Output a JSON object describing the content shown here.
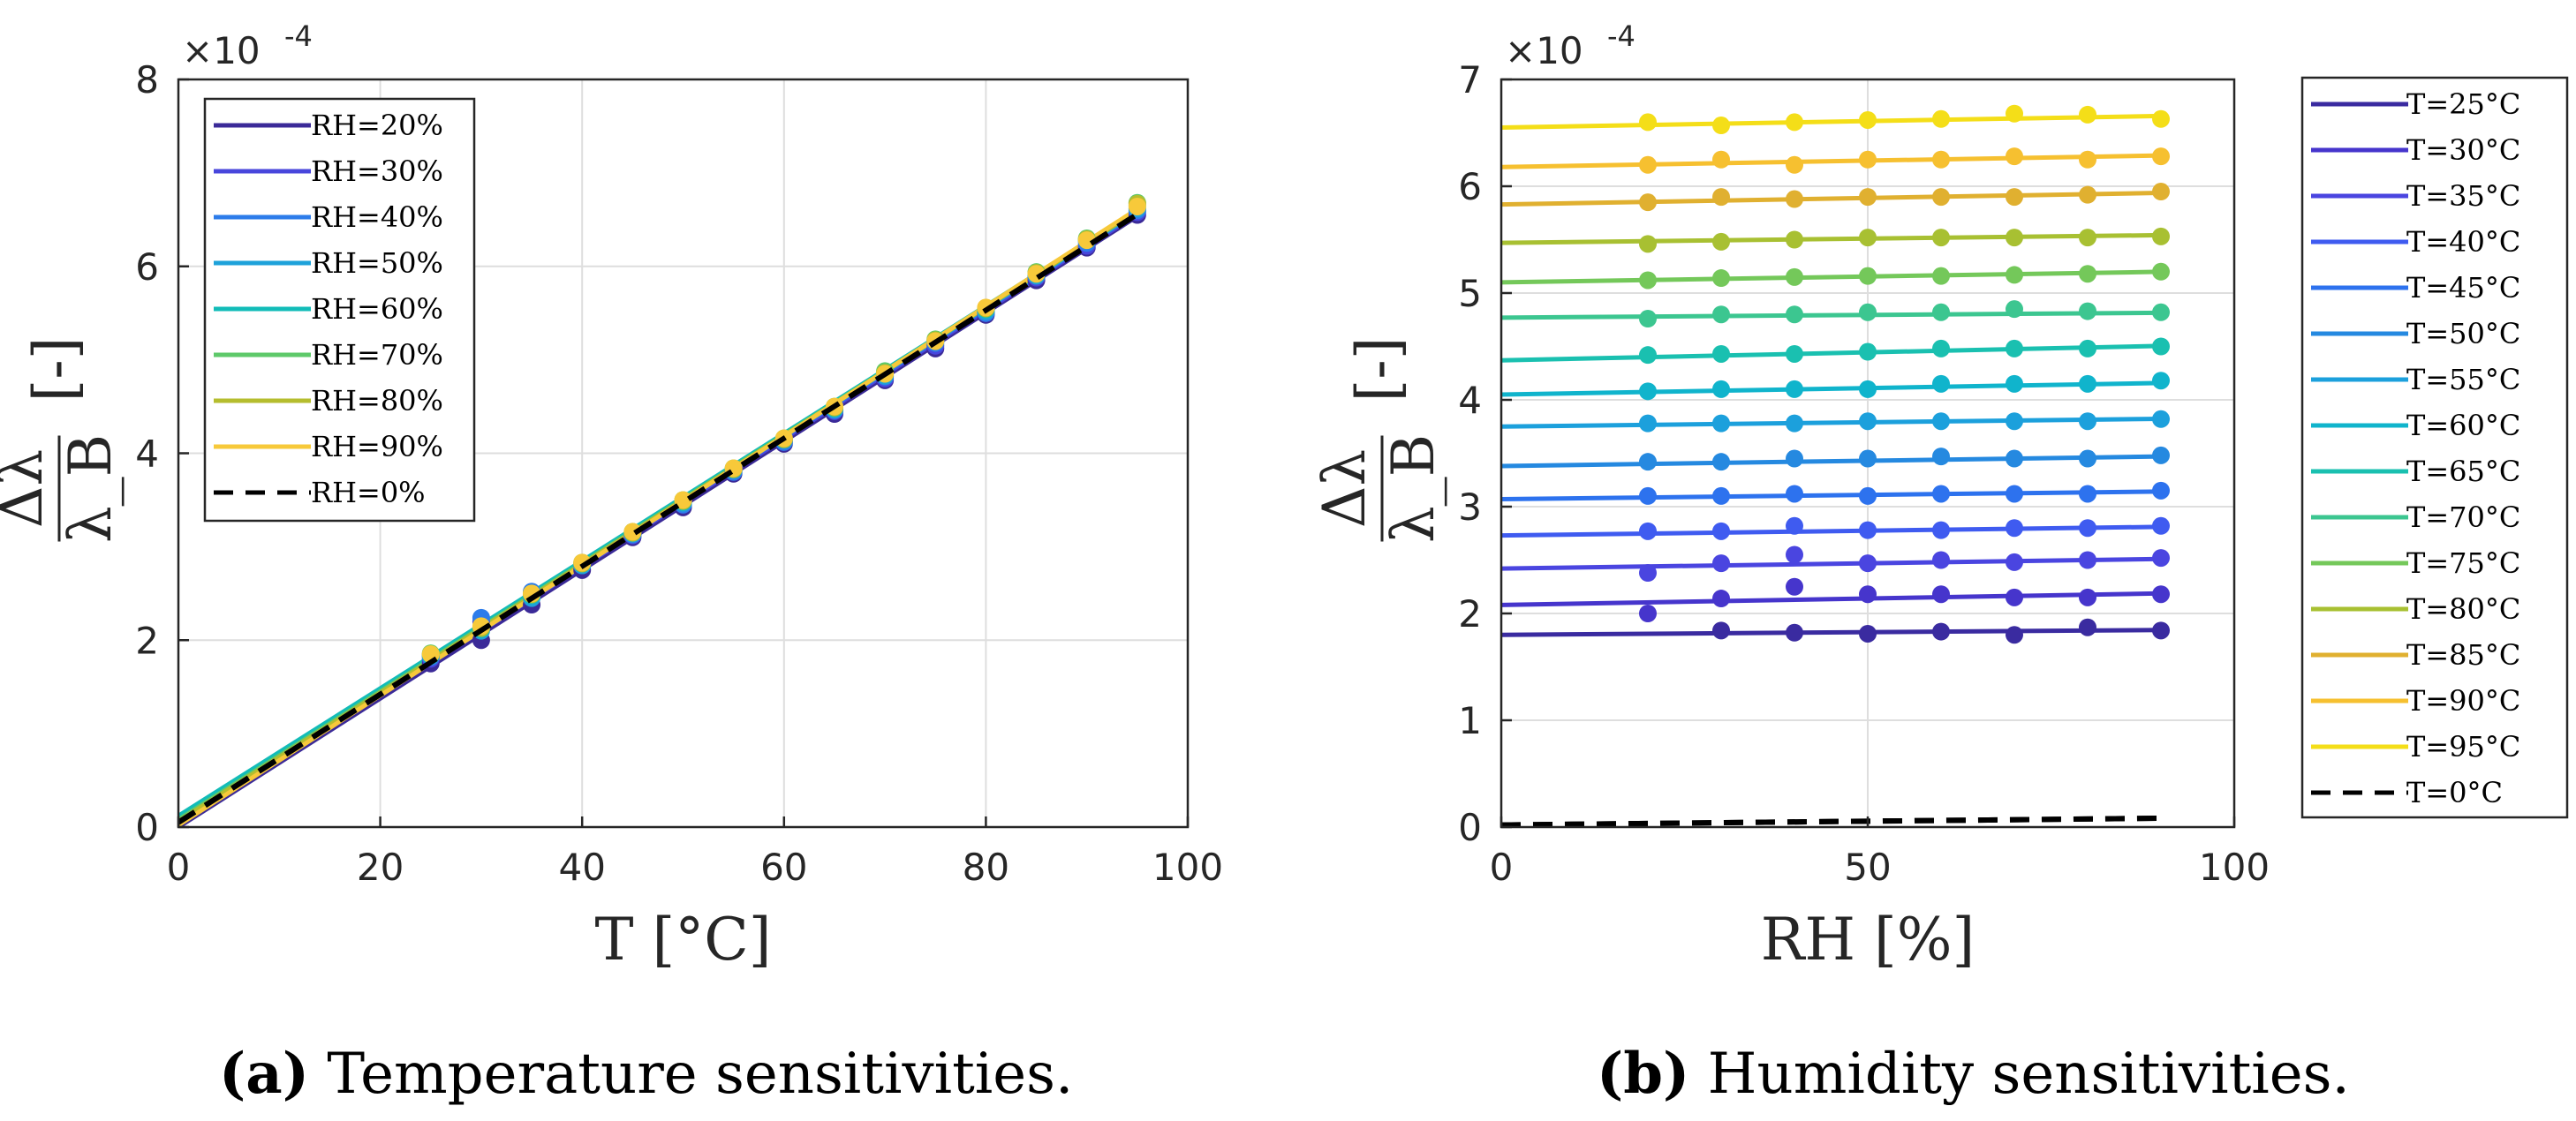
{
  "chart_data": [
    {
      "type": "scatter",
      "id": "a",
      "xlabel": "T [°C]",
      "ylabel_num": "Δλ",
      "ylabel_den": "λ_B",
      "ylabel_unit": "[-]",
      "exponent_label": "×10",
      "exponent_power": "-4",
      "xlim": [
        0,
        100
      ],
      "ylim": [
        0,
        8
      ],
      "xticks": [
        0,
        20,
        40,
        60,
        80,
        100
      ],
      "yticks": [
        0,
        2,
        4,
        6,
        8
      ],
      "xtick_labels": [
        "0",
        "20",
        "40",
        "60",
        "80",
        "100"
      ],
      "ytick_labels": [
        "0",
        "2",
        "4",
        "6",
        "8"
      ],
      "grid": true,
      "legend_position": "top-left",
      "caption_letter": "(a)",
      "caption_text": " Temperature sensitivities.",
      "x_points": [
        25,
        30,
        35,
        40,
        45,
        50,
        55,
        60,
        65,
        70,
        75,
        80,
        85,
        90,
        95
      ],
      "series": [
        {
          "name": "RH=20%",
          "color": "#3b2a98",
          "fit": [
            0.0,
            0.0688
          ],
          "values": [
            1.75,
            2.0,
            2.38,
            2.75,
            3.1,
            3.42,
            3.78,
            4.1,
            4.42,
            4.78,
            5.12,
            5.48,
            5.85,
            6.2,
            6.55
          ]
        },
        {
          "name": "RH=30%",
          "color": "#4846dc",
          "fit": [
            0.04,
            0.0686
          ],
          "values": [
            1.8,
            2.2,
            2.5,
            2.8,
            3.12,
            3.45,
            3.8,
            4.12,
            4.45,
            4.8,
            5.15,
            5.5,
            5.88,
            6.22,
            6.58
          ]
        },
        {
          "name": "RH=40%",
          "color": "#2d7cea",
          "fit": [
            0.06,
            0.0686
          ],
          "values": [
            1.82,
            2.24,
            2.52,
            2.8,
            3.13,
            3.45,
            3.8,
            4.12,
            4.46,
            4.82,
            5.18,
            5.5,
            5.9,
            6.25,
            6.6
          ]
        },
        {
          "name": "RH=50%",
          "color": "#1ea2da",
          "fit": [
            0.1,
            0.0682
          ],
          "values": [
            1.83,
            2.1,
            2.45,
            2.8,
            3.14,
            3.47,
            3.82,
            4.14,
            4.47,
            4.83,
            5.2,
            5.52,
            5.9,
            6.28,
            6.62
          ]
        },
        {
          "name": "RH=60%",
          "color": "#12bcb8",
          "fit": [
            0.12,
            0.0682
          ],
          "values": [
            1.84,
            2.12,
            2.48,
            2.82,
            3.15,
            3.48,
            3.83,
            4.15,
            4.48,
            4.85,
            5.2,
            5.54,
            5.92,
            6.28,
            6.65
          ]
        },
        {
          "name": "RH=70%",
          "color": "#5ec96a",
          "fit": [
            0.08,
            0.0686
          ],
          "values": [
            1.86,
            2.14,
            2.5,
            2.83,
            3.16,
            3.5,
            3.84,
            4.16,
            4.5,
            4.88,
            5.22,
            5.55,
            5.94,
            6.3,
            6.68
          ]
        },
        {
          "name": "RH=80%",
          "color": "#b5bd2e",
          "fit": [
            0.06,
            0.0688
          ],
          "values": [
            1.85,
            2.13,
            2.49,
            2.82,
            3.15,
            3.49,
            3.83,
            4.15,
            4.49,
            4.86,
            5.21,
            5.55,
            5.93,
            6.29,
            6.67
          ]
        },
        {
          "name": "RH=90%",
          "color": "#f7c93a",
          "fit": [
            0.02,
            0.0694
          ],
          "values": [
            1.85,
            2.15,
            2.5,
            2.83,
            3.16,
            3.5,
            3.84,
            4.16,
            4.5,
            4.85,
            5.2,
            5.56,
            5.92,
            6.28,
            6.64
          ]
        },
        {
          "name": "RH=0%",
          "color": "#000000",
          "dashed": true,
          "fit": [
            0.05,
            0.0685
          ]
        }
      ]
    },
    {
      "type": "scatter",
      "id": "b",
      "xlabel": "RH [%]",
      "ylabel_num": "Δλ",
      "ylabel_den": "λ_B",
      "ylabel_unit": "[-]",
      "exponent_label": "×10",
      "exponent_power": "-4",
      "xlim": [
        0,
        100
      ],
      "ylim": [
        0,
        7
      ],
      "xticks": [
        0,
        50,
        100
      ],
      "yticks": [
        0,
        1,
        2,
        3,
        4,
        5,
        6,
        7
      ],
      "xtick_labels": [
        "0",
        "50",
        "100"
      ],
      "ytick_labels": [
        "0",
        "1",
        "2",
        "3",
        "4",
        "5",
        "6",
        "7"
      ],
      "grid": true,
      "legend_position": "outside-right",
      "caption_letter": "(b)",
      "caption_text": " Humidity sensitivities.",
      "x_points": [
        20,
        30,
        40,
        50,
        60,
        70,
        80,
        90
      ],
      "series": [
        {
          "name": "T=25°C",
          "color": "#3a2ba0",
          "fit": [
            1.8,
            0.0005
          ],
          "values": [
            null,
            1.84,
            1.82,
            1.81,
            1.83,
            1.8,
            1.87,
            1.84
          ]
        },
        {
          "name": "T=30°C",
          "color": "#4635cc",
          "fit": [
            2.08,
            0.0012
          ],
          "values": [
            2.0,
            2.14,
            2.25,
            2.18,
            2.18,
            2.15,
            2.15,
            2.18
          ]
        },
        {
          "name": "T=35°C",
          "color": "#4a45e0",
          "fit": [
            2.42,
            0.001
          ],
          "values": [
            2.38,
            2.47,
            2.55,
            2.47,
            2.5,
            2.48,
            2.5,
            2.52
          ]
        },
        {
          "name": "T=40°C",
          "color": "#3f5bf0",
          "fit": [
            2.73,
            0.0009
          ],
          "values": [
            2.77,
            2.77,
            2.82,
            2.78,
            2.78,
            2.8,
            2.8,
            2.82
          ]
        },
        {
          "name": "T=45°C",
          "color": "#2d72ee",
          "fit": [
            3.07,
            0.0008
          ],
          "values": [
            3.1,
            3.1,
            3.12,
            3.1,
            3.12,
            3.12,
            3.12,
            3.15
          ]
        },
        {
          "name": "T=50°C",
          "color": "#2589e0",
          "fit": [
            3.38,
            0.001
          ],
          "values": [
            3.42,
            3.42,
            3.45,
            3.45,
            3.47,
            3.45,
            3.45,
            3.48
          ]
        },
        {
          "name": "T=55°C",
          "color": "#1ca0dc",
          "fit": [
            3.75,
            0.0008
          ],
          "values": [
            3.78,
            3.78,
            3.78,
            3.8,
            3.8,
            3.8,
            3.8,
            3.82
          ]
        },
        {
          "name": "T=60°C",
          "color": "#10b4cc",
          "fit": [
            4.05,
            0.0012
          ],
          "values": [
            4.08,
            4.1,
            4.1,
            4.1,
            4.15,
            4.15,
            4.15,
            4.18
          ]
        },
        {
          "name": "T=65°C",
          "color": "#1ac0b0",
          "fit": [
            4.37,
            0.0015
          ],
          "values": [
            4.42,
            4.43,
            4.43,
            4.45,
            4.48,
            4.48,
            4.48,
            4.5
          ]
        },
        {
          "name": "T=70°C",
          "color": "#3cc690",
          "fit": [
            4.77,
            0.0005
          ],
          "values": [
            4.76,
            4.8,
            4.8,
            4.82,
            4.82,
            4.85,
            4.83,
            4.82
          ]
        },
        {
          "name": "T=75°C",
          "color": "#74c85a",
          "fit": [
            5.1,
            0.0011
          ],
          "values": [
            5.12,
            5.14,
            5.15,
            5.16,
            5.16,
            5.17,
            5.18,
            5.2
          ]
        },
        {
          "name": "T=80°C",
          "color": "#a8c032",
          "fit": [
            5.47,
            0.0008
          ],
          "values": [
            5.46,
            5.48,
            5.5,
            5.52,
            5.52,
            5.52,
            5.52,
            5.53
          ]
        },
        {
          "name": "T=85°C",
          "color": "#e0b030",
          "fit": [
            5.83,
            0.0012
          ],
          "values": [
            5.85,
            5.9,
            5.88,
            5.9,
            5.9,
            5.9,
            5.92,
            5.95
          ]
        },
        {
          "name": "T=90°C",
          "color": "#f6c030",
          "fit": [
            6.18,
            0.0012
          ],
          "values": [
            6.2,
            6.25,
            6.2,
            6.25,
            6.25,
            6.28,
            6.25,
            6.28
          ]
        },
        {
          "name": "T=95°C",
          "color": "#f4de18",
          "fit": [
            6.55,
            0.0012
          ],
          "values": [
            6.6,
            6.57,
            6.6,
            6.62,
            6.63,
            6.68,
            6.67,
            6.63
          ]
        },
        {
          "name": "T=0°C",
          "color": "#000000",
          "dashed": true,
          "fit": [
            0.02,
            0.0007
          ]
        }
      ]
    }
  ]
}
